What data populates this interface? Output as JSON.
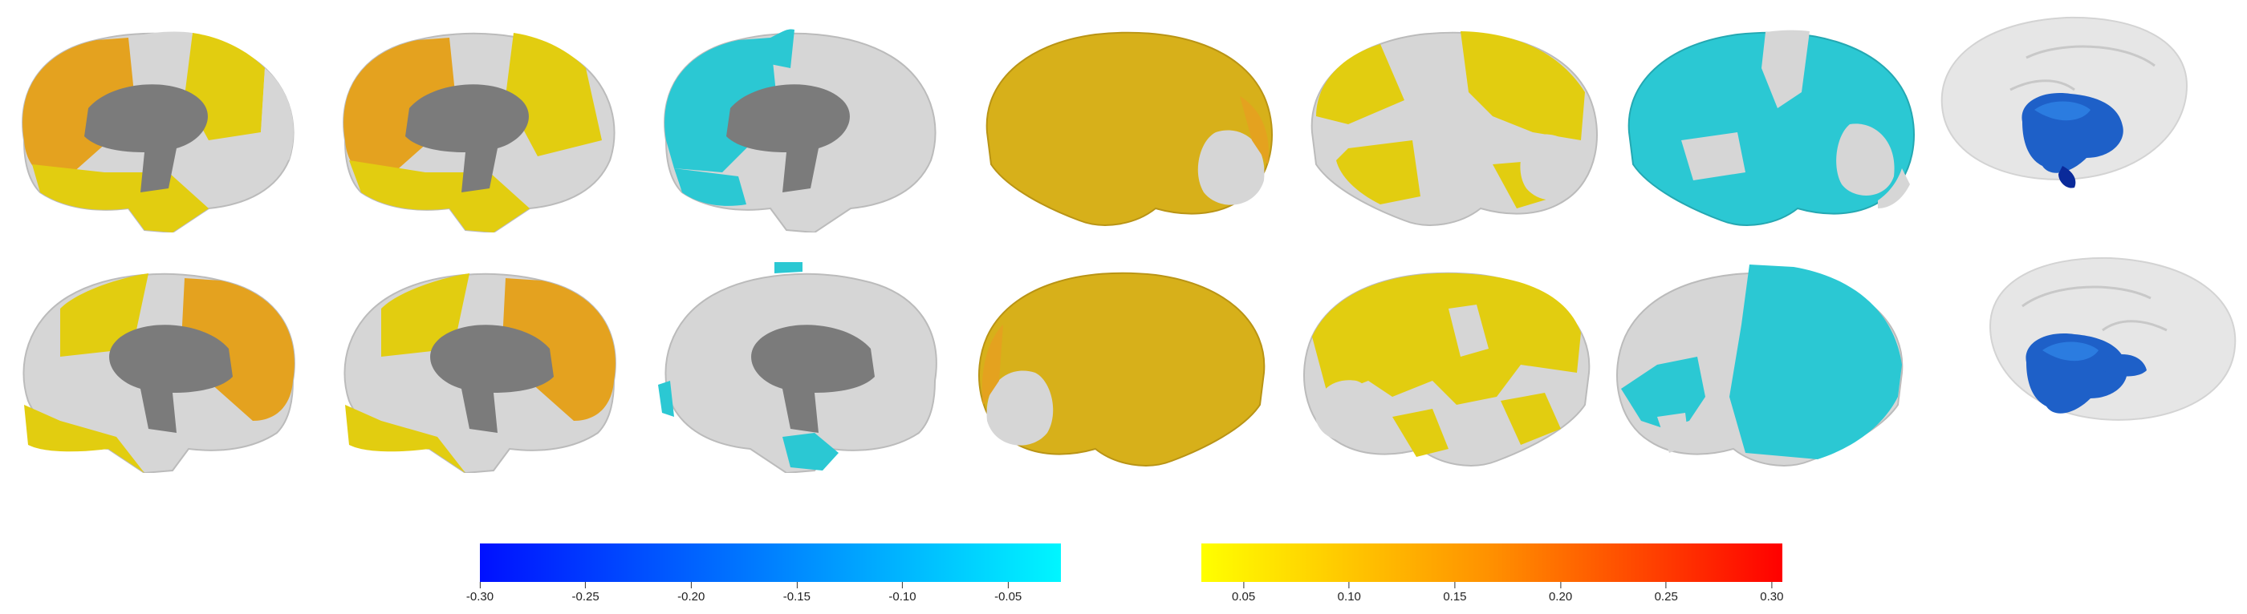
{
  "colors": {
    "yellow": "#e2cd10",
    "orange": "#e4a21f",
    "mustard": "#d7b01a",
    "cyan": "#2bc8d3",
    "gray_cortex": "#d6d6d6",
    "gray_medial": "#7b7b7b",
    "subcortical_blue": "#1e60c8",
    "glass": "#d9d9d9"
  },
  "brains": {
    "row1": [
      {
        "view": "medial-left",
        "scheme": "yellow-orange"
      },
      {
        "view": "medial-left",
        "scheme": "yellow-orange"
      },
      {
        "view": "medial-left",
        "scheme": "cyan"
      },
      {
        "view": "lateral-left",
        "scheme": "mustard-full"
      },
      {
        "view": "lateral-left",
        "scheme": "yellow-patchy"
      },
      {
        "view": "lateral-left",
        "scheme": "cyan-full"
      },
      {
        "view": "subcortical",
        "scheme": "blue"
      }
    ],
    "row2": [
      {
        "view": "medial-right",
        "scheme": "yellow-orange"
      },
      {
        "view": "medial-right",
        "scheme": "yellow-orange"
      },
      {
        "view": "medial-right",
        "scheme": "cyan-sparse"
      },
      {
        "view": "lateral-right",
        "scheme": "mustard-full"
      },
      {
        "view": "lateral-right",
        "scheme": "yellow-patchy"
      },
      {
        "view": "lateral-right",
        "scheme": "cyan-full"
      },
      {
        "view": "subcortical",
        "scheme": "blue"
      }
    ]
  },
  "colorbars": {
    "negative": {
      "min": -0.3,
      "max": -0.025,
      "ticks": [
        {
          "value": -0.3,
          "label": "-0.30"
        },
        {
          "value": -0.25,
          "label": "-0.25"
        },
        {
          "value": -0.2,
          "label": "-0.20"
        },
        {
          "value": -0.15,
          "label": "-0.15"
        },
        {
          "value": -0.1,
          "label": "-0.10"
        },
        {
          "value": -0.05,
          "label": "-0.05"
        }
      ]
    },
    "positive": {
      "min": 0.03,
      "max": 0.305,
      "ticks": [
        {
          "value": 0.05,
          "label": "0.05"
        },
        {
          "value": 0.1,
          "label": "0.10"
        },
        {
          "value": 0.15,
          "label": "0.15"
        },
        {
          "value": 0.2,
          "label": "0.20"
        },
        {
          "value": 0.25,
          "label": "0.25"
        },
        {
          "value": 0.3,
          "label": "0.30"
        }
      ]
    }
  }
}
